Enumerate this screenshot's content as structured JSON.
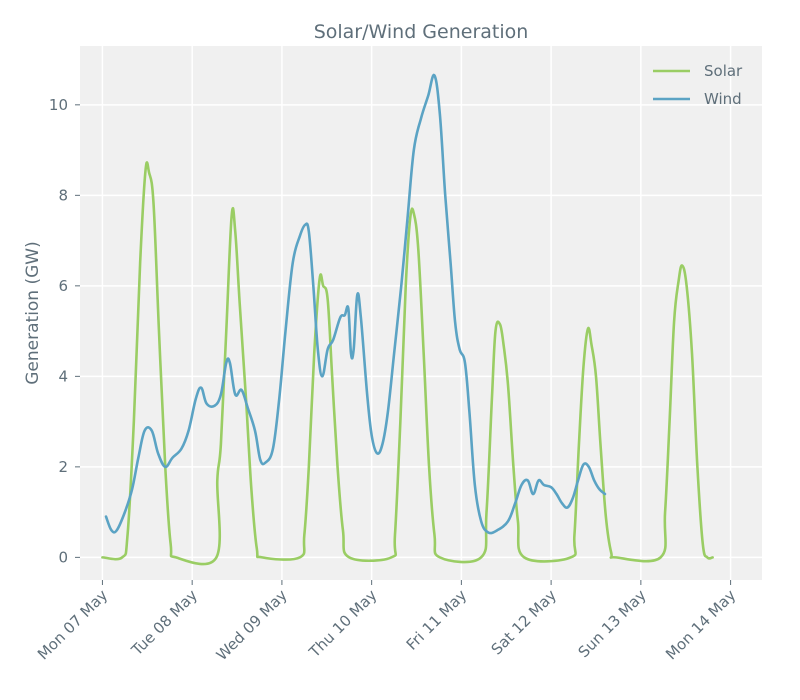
{
  "chart_data": {
    "type": "line",
    "title": "Solar/Wind Generation",
    "xlabel": "",
    "ylabel": "Generation (GW)",
    "ylim": [
      -0.5,
      11.3
    ],
    "yticks": [
      0,
      2,
      4,
      6,
      8,
      10
    ],
    "xlim_days": [
      -0.25,
      7.35
    ],
    "xticks": [
      {
        "day": 0,
        "label": "Mon 07 May"
      },
      {
        "day": 1,
        "label": "Tue 08 May"
      },
      {
        "day": 2,
        "label": "Wed 09 May"
      },
      {
        "day": 3,
        "label": "Thu 10 May"
      },
      {
        "day": 4,
        "label": "Fri 11 May"
      },
      {
        "day": 5,
        "label": "Sat 12 May"
      },
      {
        "day": 6,
        "label": "Sun 13 May"
      },
      {
        "day": 7,
        "label": "Mon 14 May"
      }
    ],
    "legend_position": "top-right",
    "grid": true,
    "series": [
      {
        "name": "Solar",
        "color": "#9acd64",
        "points": [
          [
            0.0,
            0
          ],
          [
            0.22,
            0
          ],
          [
            0.28,
            0.5
          ],
          [
            0.35,
            3.0
          ],
          [
            0.42,
            6.5
          ],
          [
            0.48,
            8.55
          ],
          [
            0.52,
            8.5
          ],
          [
            0.57,
            7.8
          ],
          [
            0.63,
            5.0
          ],
          [
            0.7,
            2.0
          ],
          [
            0.76,
            0.3
          ],
          [
            0.82,
            0
          ],
          [
            1.27,
            0
          ],
          [
            1.28,
            1.7
          ],
          [
            1.32,
            2.5
          ],
          [
            1.38,
            5.0
          ],
          [
            1.44,
            7.55
          ],
          [
            1.48,
            7.2
          ],
          [
            1.53,
            5.6
          ],
          [
            1.6,
            3.5
          ],
          [
            1.66,
            1.5
          ],
          [
            1.72,
            0.2
          ],
          [
            1.78,
            0
          ],
          [
            2.2,
            0
          ],
          [
            2.25,
            0.5
          ],
          [
            2.3,
            2.0
          ],
          [
            2.36,
            4.5
          ],
          [
            2.42,
            6.15
          ],
          [
            2.46,
            6.0
          ],
          [
            2.51,
            5.7
          ],
          [
            2.56,
            4.0
          ],
          [
            2.62,
            2.0
          ],
          [
            2.68,
            0.6
          ],
          [
            2.75,
            0
          ],
          [
            3.22,
            0
          ],
          [
            3.26,
            0.5
          ],
          [
            3.32,
            3.0
          ],
          [
            3.38,
            6.0
          ],
          [
            3.43,
            7.5
          ],
          [
            3.47,
            7.6
          ],
          [
            3.52,
            6.8
          ],
          [
            3.58,
            4.5
          ],
          [
            3.64,
            2.0
          ],
          [
            3.7,
            0.5
          ],
          [
            3.76,
            0
          ],
          [
            4.22,
            0
          ],
          [
            4.28,
            1.0
          ],
          [
            4.34,
            3.5
          ],
          [
            4.38,
            5.0
          ],
          [
            4.43,
            5.15
          ],
          [
            4.47,
            4.7
          ],
          [
            4.52,
            3.8
          ],
          [
            4.58,
            2.0
          ],
          [
            4.63,
            0.8
          ],
          [
            4.7,
            0
          ],
          [
            5.22,
            0
          ],
          [
            5.26,
            0.5
          ],
          [
            5.31,
            2.5
          ],
          [
            5.36,
            4.2
          ],
          [
            5.41,
            5.05
          ],
          [
            5.45,
            4.7
          ],
          [
            5.5,
            4.0
          ],
          [
            5.55,
            2.5
          ],
          [
            5.61,
            0.9
          ],
          [
            5.67,
            0.1
          ],
          [
            5.72,
            0
          ],
          [
            6.22,
            0
          ],
          [
            6.27,
            1.0
          ],
          [
            6.32,
            3.0
          ],
          [
            6.37,
            5.2
          ],
          [
            6.42,
            6.1
          ],
          [
            6.46,
            6.45
          ],
          [
            6.51,
            6.0
          ],
          [
            6.57,
            4.5
          ],
          [
            6.63,
            2.0
          ],
          [
            6.69,
            0.3
          ],
          [
            6.74,
            0
          ],
          [
            6.8,
            0
          ]
        ]
      },
      {
        "name": "Wind",
        "color": "#5ba3c4",
        "points": [
          [
            0.04,
            0.9
          ],
          [
            0.1,
            0.6
          ],
          [
            0.16,
            0.6
          ],
          [
            0.25,
            1.0
          ],
          [
            0.33,
            1.5
          ],
          [
            0.4,
            2.2
          ],
          [
            0.47,
            2.8
          ],
          [
            0.55,
            2.8
          ],
          [
            0.62,
            2.3
          ],
          [
            0.7,
            2.0
          ],
          [
            0.78,
            2.2
          ],
          [
            0.88,
            2.4
          ],
          [
            0.96,
            2.8
          ],
          [
            1.04,
            3.5
          ],
          [
            1.1,
            3.75
          ],
          [
            1.16,
            3.4
          ],
          [
            1.25,
            3.35
          ],
          [
            1.32,
            3.6
          ],
          [
            1.38,
            4.3
          ],
          [
            1.42,
            4.3
          ],
          [
            1.48,
            3.6
          ],
          [
            1.55,
            3.7
          ],
          [
            1.62,
            3.3
          ],
          [
            1.7,
            2.8
          ],
          [
            1.76,
            2.15
          ],
          [
            1.82,
            2.1
          ],
          [
            1.9,
            2.4
          ],
          [
            1.97,
            3.5
          ],
          [
            2.04,
            5.0
          ],
          [
            2.12,
            6.5
          ],
          [
            2.2,
            7.1
          ],
          [
            2.26,
            7.35
          ],
          [
            2.3,
            7.2
          ],
          [
            2.35,
            6.0
          ],
          [
            2.4,
            4.6
          ],
          [
            2.45,
            4.0
          ],
          [
            2.51,
            4.6
          ],
          [
            2.57,
            4.8
          ],
          [
            2.65,
            5.3
          ],
          [
            2.7,
            5.35
          ],
          [
            2.74,
            5.5
          ],
          [
            2.77,
            4.5
          ],
          [
            2.8,
            4.6
          ],
          [
            2.84,
            5.8
          ],
          [
            2.88,
            5.3
          ],
          [
            2.95,
            3.6
          ],
          [
            3.0,
            2.7
          ],
          [
            3.06,
            2.3
          ],
          [
            3.12,
            2.5
          ],
          [
            3.18,
            3.2
          ],
          [
            3.25,
            4.5
          ],
          [
            3.33,
            6.0
          ],
          [
            3.4,
            7.5
          ],
          [
            3.47,
            9.0
          ],
          [
            3.55,
            9.7
          ],
          [
            3.63,
            10.2
          ],
          [
            3.7,
            10.65
          ],
          [
            3.76,
            9.8
          ],
          [
            3.82,
            8.0
          ],
          [
            3.88,
            6.5
          ],
          [
            3.93,
            5.2
          ],
          [
            3.98,
            4.6
          ],
          [
            4.04,
            4.3
          ],
          [
            4.09,
            3.2
          ],
          [
            4.15,
            1.6
          ],
          [
            4.22,
            0.8
          ],
          [
            4.3,
            0.55
          ],
          [
            4.4,
            0.6
          ],
          [
            4.52,
            0.8
          ],
          [
            4.6,
            1.2
          ],
          [
            4.67,
            1.6
          ],
          [
            4.74,
            1.7
          ],
          [
            4.8,
            1.4
          ],
          [
            4.86,
            1.7
          ],
          [
            4.92,
            1.6
          ],
          [
            5.0,
            1.55
          ],
          [
            5.06,
            1.4
          ],
          [
            5.12,
            1.2
          ],
          [
            5.18,
            1.1
          ],
          [
            5.24,
            1.3
          ],
          [
            5.3,
            1.7
          ],
          [
            5.36,
            2.05
          ],
          [
            5.42,
            2.0
          ],
          [
            5.48,
            1.7
          ],
          [
            5.54,
            1.5
          ],
          [
            5.6,
            1.4
          ]
        ]
      }
    ]
  }
}
